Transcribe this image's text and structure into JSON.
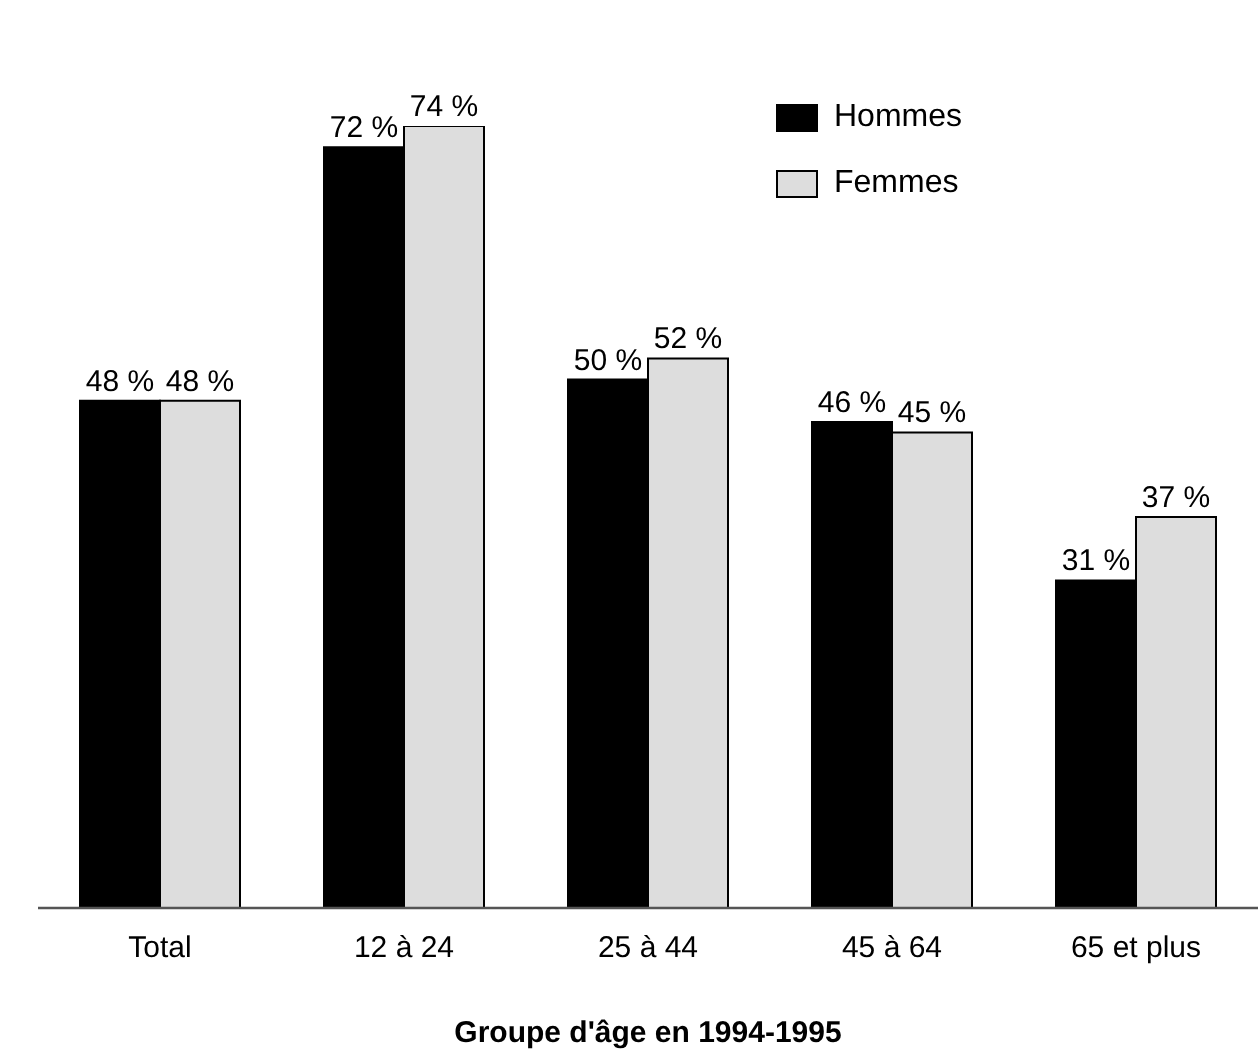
{
  "chart_data": {
    "type": "bar",
    "xlabel": "Groupe d'âge en 1994-1995",
    "categories": [
      "Total",
      "12 à 24",
      "25 à 44",
      "45 à 64",
      "65 et plus"
    ],
    "series": [
      {
        "name": "Hommes",
        "color": "#000000",
        "values": [
          48,
          72,
          50,
          46,
          31
        ],
        "value_labels": [
          "48 %",
          "72 %",
          "50 %",
          "46 %",
          "31 %"
        ]
      },
      {
        "name": "Femmes",
        "color": "#dddddd",
        "values": [
          48,
          74,
          52,
          45,
          37
        ],
        "value_labels": [
          "48 %",
          "74 %",
          "52 %",
          "45 %",
          "37 %"
        ]
      }
    ],
    "legend": "top right",
    "grid": false
  }
}
